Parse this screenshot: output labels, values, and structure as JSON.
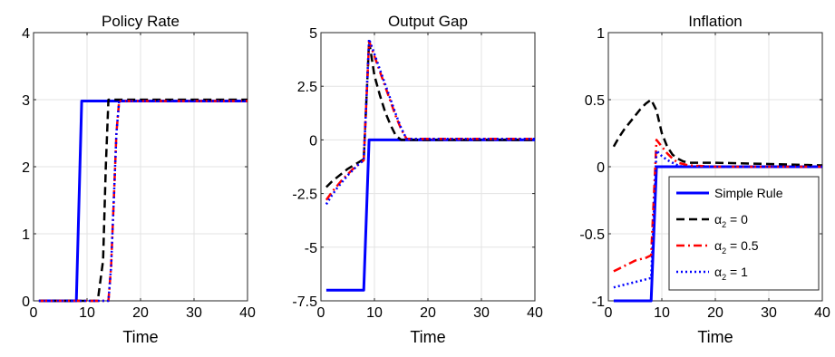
{
  "chart_data": [
    {
      "type": "line",
      "title": "Policy Rate",
      "xlabel": "Time",
      "ylabel": "",
      "xlim": [
        0,
        40
      ],
      "ylim": [
        0,
        4
      ],
      "xticks": [
        0,
        10,
        20,
        30,
        40
      ],
      "xtick_labels": [
        "0",
        "10",
        "20",
        "30",
        "40"
      ],
      "yticks": [
        0,
        1,
        2,
        3,
        4
      ],
      "ytick_labels": [
        "0",
        "1",
        "2",
        "3",
        "4"
      ],
      "grid": true,
      "series": [
        {
          "key": "simple",
          "x": [
            1,
            8,
            9,
            40
          ],
          "y": [
            0,
            0,
            2.98,
            2.98
          ]
        },
        {
          "key": "a0",
          "x": [
            1,
            12,
            13,
            13.5,
            14,
            40
          ],
          "y": [
            0,
            0,
            0.6,
            2.0,
            3.0,
            3.0
          ]
        },
        {
          "key": "a05",
          "x": [
            1,
            14,
            14.5,
            15,
            15.5,
            16,
            40
          ],
          "y": [
            0,
            0,
            0.5,
            1.5,
            2.5,
            2.98,
            2.98
          ]
        },
        {
          "key": "a1",
          "x": [
            1,
            14,
            14.5,
            15,
            15.5,
            16,
            40
          ],
          "y": [
            0,
            0,
            0.5,
            1.5,
            2.5,
            2.98,
            2.98
          ]
        }
      ]
    },
    {
      "type": "line",
      "title": "Output Gap",
      "xlabel": "Time",
      "ylabel": "",
      "xlim": [
        0,
        40
      ],
      "ylim": [
        -7.5,
        5
      ],
      "xticks": [
        0,
        10,
        20,
        30,
        40
      ],
      "xtick_labels": [
        "0",
        "10",
        "20",
        "30",
        "40"
      ],
      "yticks": [
        -7.5,
        -5,
        -2.5,
        0,
        2.5,
        5
      ],
      "ytick_labels": [
        "-7.5",
        "-5",
        "-2.5",
        "0",
        "2.5",
        "5"
      ],
      "grid": true,
      "series": [
        {
          "key": "simple",
          "x": [
            1,
            8,
            9,
            40
          ],
          "y": [
            -7.0,
            -7.0,
            0,
            0
          ]
        },
        {
          "key": "a0",
          "x": [
            1,
            2,
            3,
            4,
            5,
            6,
            7,
            8,
            9,
            10,
            11,
            12,
            13,
            14,
            15,
            40
          ],
          "y": [
            -2.2,
            -1.95,
            -1.75,
            -1.55,
            -1.35,
            -1.2,
            -1.05,
            -0.9,
            4.6,
            3.0,
            2.1,
            1.3,
            0.7,
            0.2,
            0,
            0
          ]
        },
        {
          "key": "a05",
          "x": [
            1,
            2,
            3,
            4,
            5,
            6,
            7,
            8,
            9,
            10,
            11,
            12,
            13,
            14,
            15,
            16,
            40
          ],
          "y": [
            -2.8,
            -2.45,
            -2.15,
            -1.85,
            -1.6,
            -1.35,
            -1.15,
            -0.95,
            4.6,
            3.9,
            3.2,
            2.5,
            1.8,
            1.1,
            0.5,
            0.05,
            0.05
          ]
        },
        {
          "key": "a1",
          "x": [
            1,
            2,
            3,
            4,
            5,
            6,
            7,
            8,
            9,
            10,
            11,
            12,
            13,
            14,
            15,
            16,
            40
          ],
          "y": [
            -3.0,
            -2.6,
            -2.25,
            -1.95,
            -1.65,
            -1.4,
            -1.15,
            -0.95,
            4.7,
            4.0,
            3.3,
            2.6,
            1.9,
            1.2,
            0.55,
            0.05,
            0.05
          ]
        }
      ]
    },
    {
      "type": "line",
      "title": "Inflation",
      "xlabel": "Time",
      "ylabel": "",
      "xlim": [
        0,
        40
      ],
      "ylim": [
        -1,
        1
      ],
      "xticks": [
        0,
        10,
        20,
        30,
        40
      ],
      "xtick_labels": [
        "0",
        "10",
        "20",
        "30",
        "40"
      ],
      "yticks": [
        -1,
        -0.5,
        0,
        0.5,
        1
      ],
      "ytick_labels": [
        "-1",
        "-0.5",
        "0",
        "0.5",
        "1"
      ],
      "grid": true,
      "series": [
        {
          "key": "simple",
          "x": [
            1,
            8,
            9,
            40
          ],
          "y": [
            -1.0,
            -1.0,
            0,
            0
          ]
        },
        {
          "key": "a0",
          "x": [
            1,
            2,
            3,
            4,
            5,
            6,
            7,
            8,
            9,
            10,
            11,
            12,
            13,
            14,
            15,
            20,
            30,
            40
          ],
          "y": [
            0.15,
            0.22,
            0.28,
            0.33,
            0.38,
            0.43,
            0.47,
            0.5,
            0.42,
            0.25,
            0.15,
            0.09,
            0.06,
            0.04,
            0.03,
            0.03,
            0.02,
            0.01
          ]
        },
        {
          "key": "a05",
          "x": [
            1,
            2,
            3,
            4,
            5,
            6,
            7,
            8,
            9,
            10,
            11,
            12,
            13,
            14,
            15,
            20,
            40
          ],
          "y": [
            -0.78,
            -0.76,
            -0.74,
            -0.72,
            -0.7,
            -0.69,
            -0.68,
            -0.66,
            0.2,
            0.15,
            0.1,
            0.06,
            0.03,
            0.02,
            0.01,
            0.0,
            0.0
          ]
        },
        {
          "key": "a1",
          "x": [
            1,
            2,
            3,
            4,
            5,
            6,
            7,
            8,
            9,
            10,
            11,
            12,
            13,
            14,
            40
          ],
          "y": [
            -0.9,
            -0.89,
            -0.88,
            -0.87,
            -0.86,
            -0.85,
            -0.84,
            -0.83,
            0.12,
            0.08,
            0.05,
            0.03,
            0.01,
            0.0,
            0.0
          ]
        }
      ]
    }
  ],
  "legend": {
    "placement": "lower-right of Inflation panel",
    "entries": [
      {
        "key": "simple",
        "label": "Simple Rule",
        "base": "Simple Rule",
        "sub": "",
        "suffix": ""
      },
      {
        "key": "a0",
        "label": "α2 = 0",
        "base": "α",
        "sub": "2",
        "suffix": " = 0"
      },
      {
        "key": "a05",
        "label": "α2 = 0.5",
        "base": "α",
        "sub": "2",
        "suffix": " = 0.5"
      },
      {
        "key": "a1",
        "label": "α2 = 1",
        "base": "α",
        "sub": "2",
        "suffix": " = 1"
      }
    ]
  },
  "styles": {
    "simple": {
      "color": "#0000ff",
      "dash": "solid"
    },
    "a0": {
      "color": "#000000",
      "dash": "dashed"
    },
    "a05": {
      "color": "#ff0000",
      "dash": "dash-dot"
    },
    "a1": {
      "color": "#0000ff",
      "dash": "dotted"
    }
  }
}
